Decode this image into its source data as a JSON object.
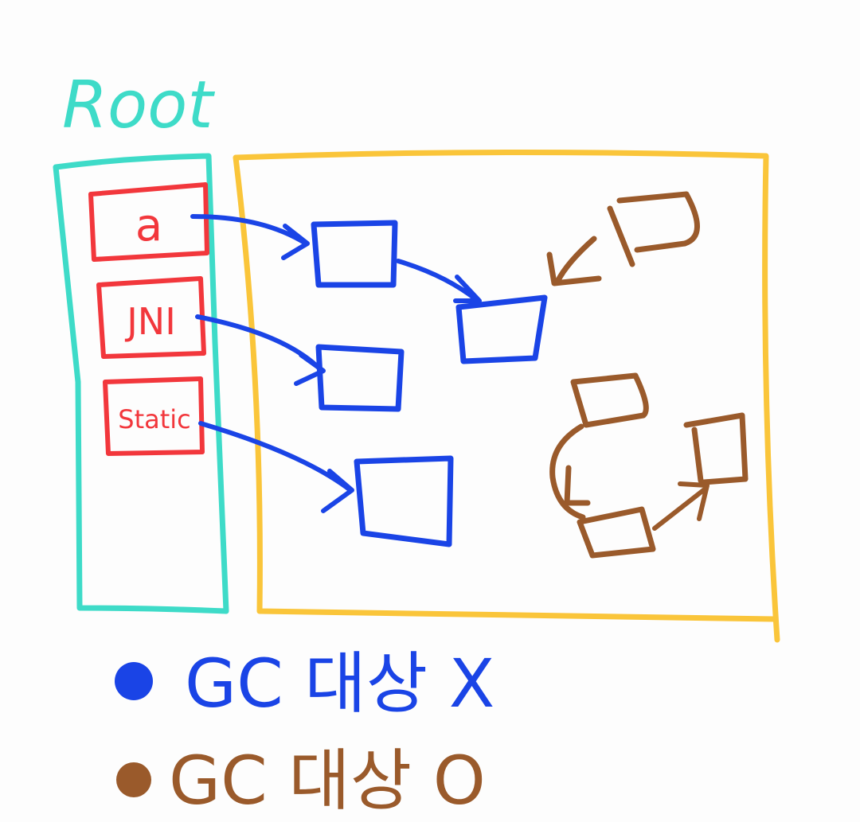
{
  "root": {
    "title": "Root",
    "items": [
      {
        "label": "a"
      },
      {
        "label": "JNI"
      },
      {
        "label": "Static"
      }
    ]
  },
  "legend": [
    {
      "text": "GC 대상 X",
      "color": "#1a44e6"
    },
    {
      "text": "GC 대상 O",
      "color": "#9a5a2b"
    }
  ],
  "colors": {
    "root": "#3edbc8",
    "root_item": "#f2373c",
    "heap": "#fac53a",
    "reachable": "#1a44e6",
    "unreachable": "#9a5a2b"
  }
}
